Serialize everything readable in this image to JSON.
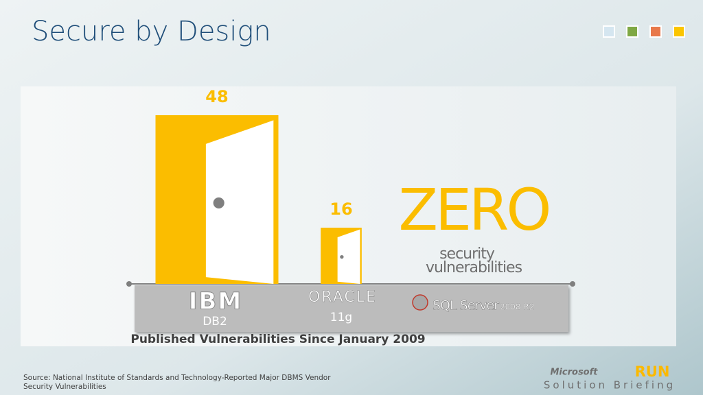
{
  "chart_data": {
    "type": "door-bar",
    "title": "Secure by Design",
    "categories": [
      "IBM",
      "ORACLE",
      "SQL Server"
    ],
    "category_sublabels": [
      "DB2",
      "11g",
      "2008 R2"
    ],
    "values": [
      48,
      16,
      0
    ],
    "value_labels": [
      "48",
      "16",
      "ZERO"
    ],
    "color": "#fbbd00",
    "annotation_lines": [
      "security",
      "vulnerabilities"
    ],
    "x_label": "Published Vulnerabilities Since January 2009",
    "source": "Source: National Institute of Standards and Technology-Reported Major DBMS Vendor Security Vulnerabilities"
  },
  "footer": {
    "brand": "Microsoft",
    "run": "RUN",
    "tagline": "Solution Briefing"
  }
}
